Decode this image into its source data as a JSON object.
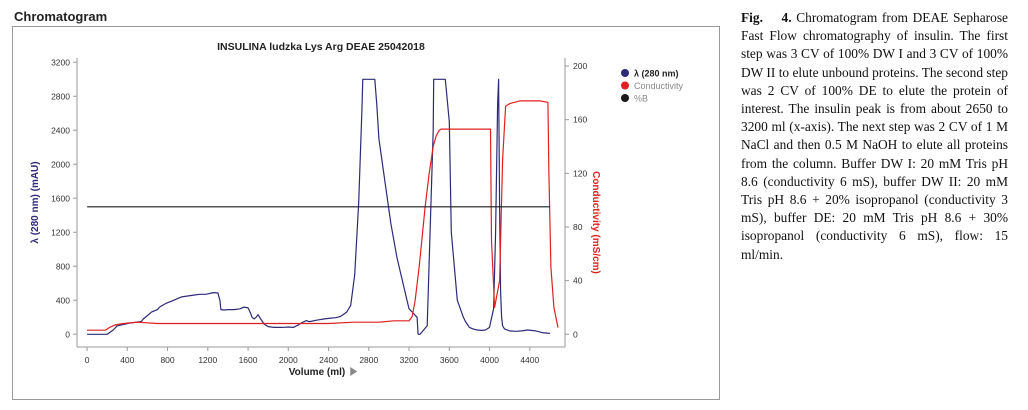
{
  "heading": "Chromatogram",
  "chart_data": {
    "type": "line",
    "title": "INSULINA ludzka Lys Arg DEAE 25042018",
    "xlabel": "Volume (ml)",
    "ylabel": "λ (280 nm) (mAU)",
    "y2label": "Conductivity (mS/cm)",
    "xlim": [
      -100,
      4750
    ],
    "xticks": [
      0,
      400,
      800,
      1200,
      1600,
      2000,
      2400,
      2800,
      3200,
      3600,
      4000,
      4400
    ],
    "ylim": [
      -150,
      3250
    ],
    "yticks": [
      0,
      400,
      800,
      1200,
      1600,
      2000,
      2400,
      2800,
      3200
    ],
    "y2lim": [
      -9.5,
      206
    ],
    "y2ticks": [
      0,
      40,
      80,
      120,
      160,
      200
    ],
    "grid": false,
    "legend_position": "top-right",
    "colors": {
      "uv": "#2e2a78",
      "conductivity": "#e02020",
      "percent_b": "#1a1a1a"
    },
    "series": [
      {
        "name": "λ (280 nm)",
        "axis": "left",
        "x": [
          0,
          200,
          260,
          300,
          420,
          540,
          560,
          600,
          640,
          700,
          720,
          780,
          820,
          860,
          900,
          940,
          1000,
          1060,
          1120,
          1180,
          1220,
          1260,
          1300,
          1320,
          1330,
          1360,
          1400,
          1460,
          1520,
          1560,
          1600,
          1620,
          1640,
          1660,
          1680,
          1700,
          1720,
          1760,
          1800,
          1860,
          1920,
          1960,
          2000,
          2050,
          2100,
          2140,
          2180,
          2200,
          2220,
          2280,
          2360,
          2420,
          2470,
          2520,
          2580,
          2620,
          2660,
          2700,
          2730,
          2740,
          2745,
          2800,
          2860,
          2880,
          2900,
          2960,
          3020,
          3080,
          3140,
          3180,
          3200,
          3240,
          3280,
          3290,
          3310,
          3380,
          3440,
          3445,
          3450,
          3560,
          3600,
          3620,
          3680,
          3740,
          3760,
          3800,
          3840,
          3880,
          3920,
          3960,
          4000,
          4040,
          4060,
          4080,
          4090,
          4100,
          4110,
          4120,
          4130,
          4150,
          4200,
          4260,
          4320,
          4380,
          4460,
          4490,
          4520,
          4560,
          4600
        ],
        "y": [
          0,
          0,
          50,
          100,
          130,
          150,
          180,
          220,
          260,
          290,
          320,
          360,
          380,
          400,
          420,
          440,
          450,
          460,
          470,
          470,
          480,
          490,
          485,
          400,
          290,
          285,
          290,
          290,
          300,
          320,
          310,
          260,
          200,
          180,
          200,
          230,
          190,
          120,
          90,
          80,
          80,
          82,
          85,
          80,
          110,
          140,
          160,
          150,
          150,
          165,
          180,
          190,
          195,
          210,
          260,
          340,
          700,
          1550,
          2600,
          3000,
          3000,
          3000,
          3000,
          2700,
          2300,
          1800,
          1300,
          900,
          600,
          400,
          300,
          250,
          200,
          0,
          0,
          100,
          2400,
          3000,
          3000,
          3000,
          2500,
          1200,
          400,
          200,
          150,
          80,
          60,
          50,
          45,
          50,
          80,
          300,
          1200,
          2700,
          3000,
          1500,
          500,
          200,
          100,
          60,
          40,
          35,
          40,
          50,
          40,
          30,
          20,
          15,
          10
        ]
      },
      {
        "name": "Conductivity",
        "axis": "right",
        "x": [
          0,
          180,
          220,
          280,
          360,
          500,
          700,
          900,
          1100,
          1300,
          1500,
          1800,
          2100,
          2400,
          2650,
          2750,
          2900,
          3050,
          3150,
          3200,
          3230,
          3260,
          3300,
          3330,
          3360,
          3400,
          3440,
          3470,
          3500,
          3520,
          3560,
          3700,
          3900,
          4010,
          4020,
          4050,
          4100,
          4130,
          4160,
          4200,
          4250,
          4300,
          4400,
          4500,
          4580,
          4590,
          4610,
          4640,
          4680
        ],
        "y": [
          3,
          3,
          5,
          7,
          8,
          9,
          8,
          8,
          8,
          8,
          8,
          8,
          8,
          8,
          9,
          9,
          9,
          10,
          10,
          10,
          13,
          25,
          50,
          72,
          95,
          120,
          140,
          148,
          152,
          153,
          153,
          153,
          153,
          153,
          70,
          20,
          40,
          130,
          170,
          172,
          173,
          174,
          174,
          174,
          173,
          120,
          50,
          20,
          5
        ]
      },
      {
        "name": "%B",
        "axis": "left",
        "x": [
          0,
          4600
        ],
        "y": [
          1500,
          1500
        ]
      }
    ]
  }
}
